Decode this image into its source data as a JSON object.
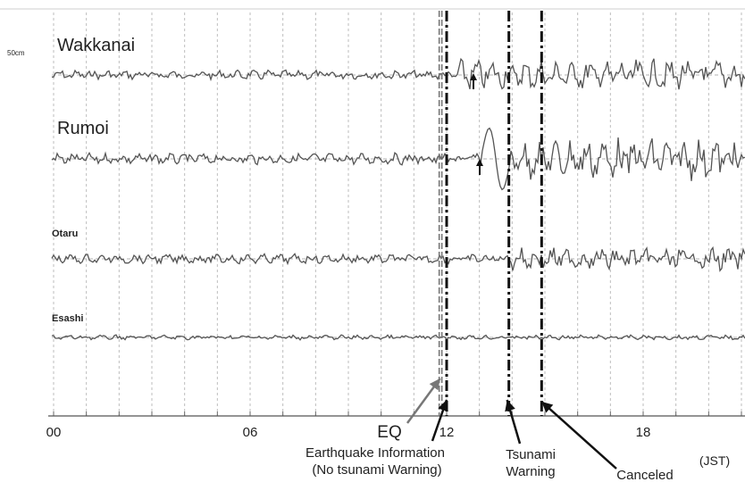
{
  "chart_data": {
    "type": "line",
    "x_unit": "hour (JST)",
    "xlim": [
      0,
      23
    ],
    "x_tick_labels": [
      {
        "x": 0,
        "label": "00"
      },
      {
        "x": 6,
        "label": "06"
      },
      {
        "x": 12,
        "label": "12"
      },
      {
        "x": 18,
        "label": "18"
      }
    ],
    "x_unit_label": "(JST)",
    "scale_label": "50cm",
    "grid": true,
    "series": [
      {
        "name": "Wakkanai",
        "amplitude": "medium",
        "disturbance_after_hour": 12.2
      },
      {
        "name": "Rumoi",
        "amplitude": "large",
        "disturbance_after_hour": 13.1
      },
      {
        "name": "Otaru",
        "amplitude": "small",
        "disturbance_after_hour": 14.0
      },
      {
        "name": "Esashi",
        "amplitude": "very small",
        "disturbance_after_hour": null
      }
    ],
    "events": [
      {
        "label": "EQ",
        "hour": 11.8
      },
      {
        "label": "Earthquake Information (No tsunami Warning)",
        "line1": "Earthquake Information",
        "line2": "(No tsunami Warning)",
        "hour": 12.0
      },
      {
        "label": "Tsunami Warning",
        "line1": "Tsunami",
        "line2": "Warning",
        "hour": 13.9
      },
      {
        "label": "Canceled",
        "hour": 14.9
      }
    ]
  },
  "colors": {
    "trace": "#555555",
    "grid": "#bdbdbd",
    "event_line": "#111111",
    "eq_line": "#777777"
  }
}
